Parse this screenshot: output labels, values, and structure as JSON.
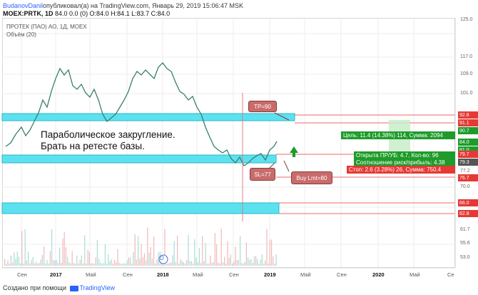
{
  "header": {
    "author": "BudanovDanil",
    "published": "опубликовал(а) на TradingView.com, Январь 29, 2019 15:06:47 MSK",
    "symbol": "MOEX:PRTK, 1D",
    "values": "84.0 0.0 (0) O:84.0 H:84.1 L:83.7 C:84.0"
  },
  "chart": {
    "title": "ПРОТЕК (ПАО) АО, 1Д, MOEX",
    "volume_label": "Объём (20)",
    "annotation": [
      "Параболическое закругление.",
      "Брать на ретесте базы."
    ],
    "callouts": {
      "tp": "TP=90",
      "sl": "SL=77",
      "buy": "Buy Lmt=80"
    },
    "y_ticks": [
      "125.0",
      "117.0",
      "109.0",
      "101.0",
      "77.2",
      "70.0",
      "61.7",
      "55.6",
      "53.0"
    ],
    "price_tags": [
      {
        "value": "92.8",
        "color": "#e53935"
      },
      {
        "value": "91.1",
        "color": "#e53935"
      },
      {
        "value": "90.7",
        "color": "#1e9b2a"
      },
      {
        "value": "84.0",
        "color": "#1e9b2a"
      },
      {
        "value": "81.0",
        "color": "#1e9b2a"
      },
      {
        "value": "79.7",
        "color": "#e53935"
      },
      {
        "value": "79.3",
        "color": "#555555"
      },
      {
        "value": "76.7",
        "color": "#e53935"
      },
      {
        "value": "66.0",
        "color": "#e53935"
      },
      {
        "value": "62.8",
        "color": "#e53935"
      }
    ],
    "x_ticks": [
      "Сен",
      "2017",
      "Май",
      "Сен",
      "2018",
      "Май",
      "Сен",
      "2019",
      "Май",
      "Сен",
      "2020",
      "Май",
      "Се"
    ],
    "position": {
      "target": "Цель: 11.4 (14.38%) 114, Сумма: 2094",
      "open": "Открыта ПР/УБ: 4.7, Кол-во: 96",
      "ratio": "Соотношение риск/прибыль: 4.38",
      "stop": "Стоп: 2.6 (3.28%) 26, Сумма: 750.4"
    },
    "dividend_marker": "D",
    "colors": {
      "zone": "#5ce1f0",
      "up": "#26a69a",
      "down": "#ef5350",
      "green_tag": "#1e9b2a",
      "red_tag": "#e53935"
    }
  },
  "footer": {
    "created": "Создано при помощи",
    "brand": "TradingView"
  }
}
